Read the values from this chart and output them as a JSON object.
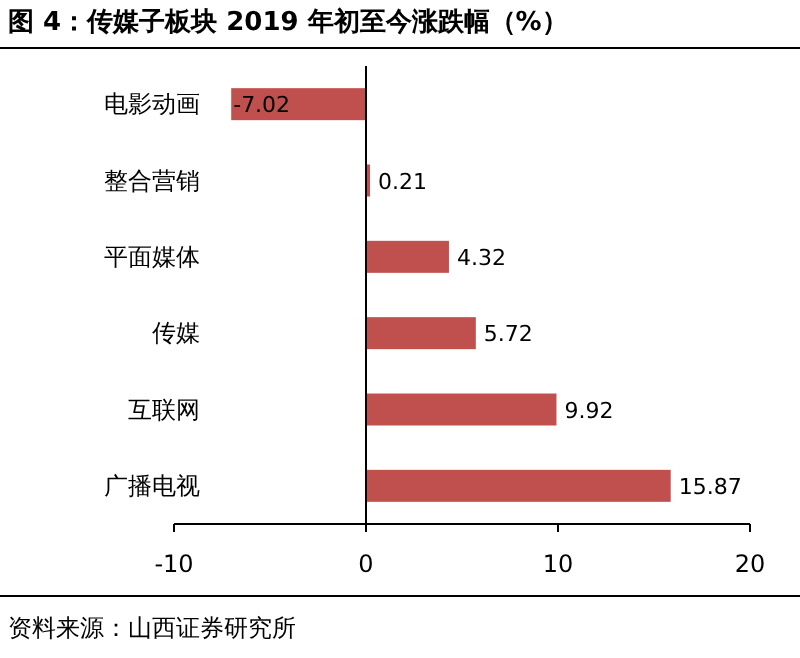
{
  "chart_data": {
    "type": "bar",
    "orientation": "horizontal",
    "title": "图 4：传媒子板块 2019 年初至今涨跌幅（%）",
    "categories": [
      "电影动画",
      "整合营销",
      "平面媒体",
      "传媒",
      "互联网",
      "广播电视"
    ],
    "values": [
      -7.02,
      0.21,
      4.32,
      5.72,
      9.92,
      15.87
    ],
    "color": "#c0504d",
    "xlim": [
      -10,
      20
    ],
    "xticks": [
      -10,
      0,
      10,
      20
    ],
    "data_labels": true,
    "annotations": [
      "资料来源：山西证券研究所"
    ]
  }
}
